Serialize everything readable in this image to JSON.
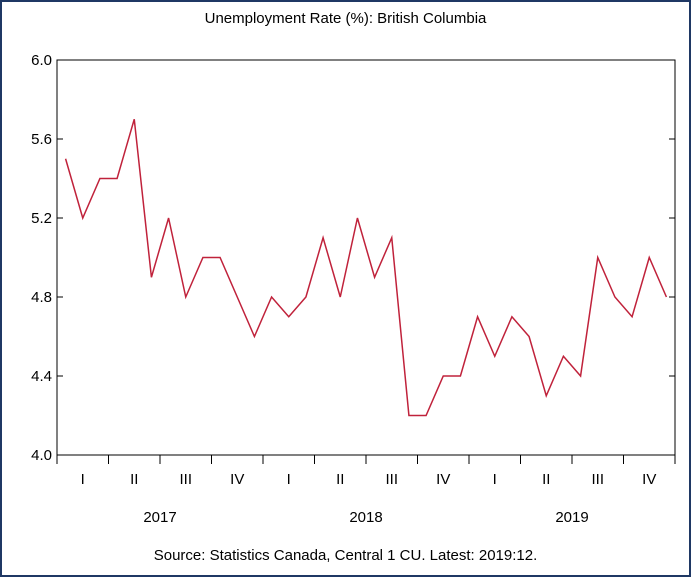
{
  "chart_data": {
    "type": "line",
    "title": "Unemployment Rate (%): British Columbia",
    "source": "Source: Statistics Canada, Central 1 CU. Latest: 2019:12.",
    "xlabel": "",
    "ylabel": "",
    "ylim": [
      4.0,
      6.0
    ],
    "yticks": [
      4.0,
      4.4,
      4.8,
      5.2,
      5.6,
      6.0
    ],
    "ytick_labels": [
      "4.0",
      "4.4",
      "4.8",
      "5.2",
      "5.6",
      "6.0"
    ],
    "x": [
      "2017-01",
      "2017-02",
      "2017-03",
      "2017-04",
      "2017-05",
      "2017-06",
      "2017-07",
      "2017-08",
      "2017-09",
      "2017-10",
      "2017-11",
      "2017-12",
      "2018-01",
      "2018-02",
      "2018-03",
      "2018-04",
      "2018-05",
      "2018-06",
      "2018-07",
      "2018-08",
      "2018-09",
      "2018-10",
      "2018-11",
      "2018-12",
      "2019-01",
      "2019-02",
      "2019-03",
      "2019-04",
      "2019-05",
      "2019-06",
      "2019-07",
      "2019-08",
      "2019-09",
      "2019-10",
      "2019-11",
      "2019-12"
    ],
    "quarter_labels": [
      "I",
      "II",
      "III",
      "IV",
      "I",
      "II",
      "III",
      "IV",
      "I",
      "II",
      "III",
      "IV"
    ],
    "year_labels": [
      "2017",
      "2018",
      "2019"
    ],
    "series": [
      {
        "values": [
          5.5,
          5.2,
          5.4,
          5.4,
          5.7,
          4.9,
          5.2,
          4.8,
          5.0,
          5.0,
          4.8,
          4.6,
          4.8,
          4.7,
          4.8,
          5.1,
          4.8,
          5.2,
          4.9,
          5.1,
          4.2,
          4.2,
          4.4,
          4.4,
          4.7,
          4.5,
          4.7,
          4.6,
          4.3,
          4.5,
          4.4,
          5.0,
          4.8,
          4.7,
          5.0,
          4.8
        ],
        "color": "#c0223b"
      }
    ],
    "grid": false,
    "legend": "none"
  },
  "colors": {
    "border": "#1f3864",
    "line": "#c0223b",
    "axis": "#000000"
  }
}
